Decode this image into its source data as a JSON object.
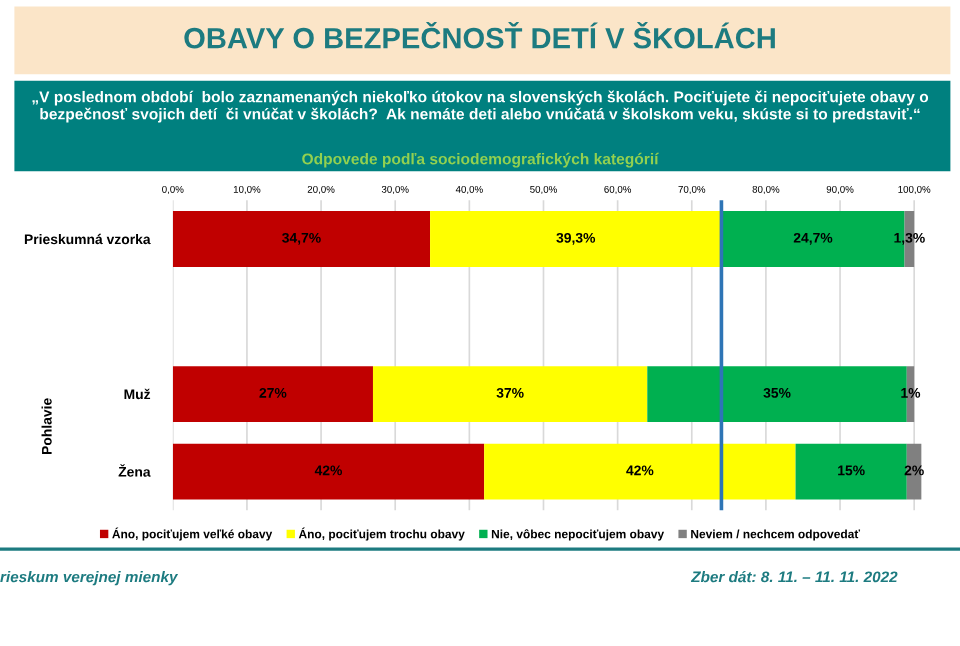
{
  "chart_data": {
    "type": "bar",
    "orientation": "horizontal",
    "stacked": true,
    "title": "OBAVY O BEZPEČNOSŤ DETÍ V ŠKOLÁCH",
    "subtitle": "„V poslednom období  bolo zaznamenaných niekoľko útokov na slovenských školách. Pociťujete či nepociťujete obavy o bezpečnosť svojich detí  či vnúčat v školách?  Ak nemáte deti alebo vnúčatá v školskom veku, skúste si to predstaviť.“",
    "categories": [
      "Prieskumná vzorka",
      null,
      "Muž",
      "Žena"
    ],
    "series": [
      {
        "name": "Áno, pociťujem veľké obavy",
        "color": "#c00000",
        "values": [
          34.7,
          null,
          27,
          42
        ],
        "value_labels": [
          "34,7%",
          null,
          "27%",
          "42%"
        ]
      },
      {
        "name": "Áno, pociťujem trochu obavy",
        "color": "#ffff00",
        "values": [
          39.3,
          null,
          37,
          42
        ],
        "value_labels": [
          "39,3%",
          null,
          "37%",
          "42%"
        ]
      },
      {
        "name": "Nie, vôbec nepociťujem obavy",
        "color": "#00b050",
        "values": [
          24.7,
          null,
          35,
          15
        ],
        "value_labels": [
          "24,7%",
          null,
          "35%",
          "15%"
        ]
      },
      {
        "name": "Neviem / nechcem odpovedať",
        "color": "#808080",
        "values": [
          1.3,
          null,
          1,
          2
        ],
        "value_labels": [
          "1,3%",
          null,
          "1%",
          "2%"
        ]
      }
    ],
    "xlim": [
      0,
      101
    ],
    "xticks": [
      {
        "value": 0,
        "label": "0,0%"
      },
      {
        "value": 10,
        "label": "10,0%"
      },
      {
        "value": 20,
        "label": "20,0%"
      },
      {
        "value": 30,
        "label": "30,0%"
      },
      {
        "value": 40,
        "label": "40,0%"
      },
      {
        "value": 50,
        "label": "50,0%"
      },
      {
        "value": 60,
        "label": "60,0%"
      },
      {
        "value": 70,
        "label": "70,0%"
      },
      {
        "value": 80,
        "label": "80,0%"
      },
      {
        "value": 90,
        "label": "90,0%"
      },
      {
        "value": 100,
        "label": "100,0%"
      }
    ],
    "ref_lines": [
      {
        "axis": "x",
        "value": 74,
        "label": null,
        "color": "#2e75b6"
      }
    ],
    "grid": "x",
    "legend": "bottom",
    "annotations": [
      "Odpovede podľa sociodemografických kategórií",
      "Pohlavie",
      "rieskum verejnej mienky",
      "Zber dát: 8. 11. – 11. 11. 2022"
    ]
  }
}
